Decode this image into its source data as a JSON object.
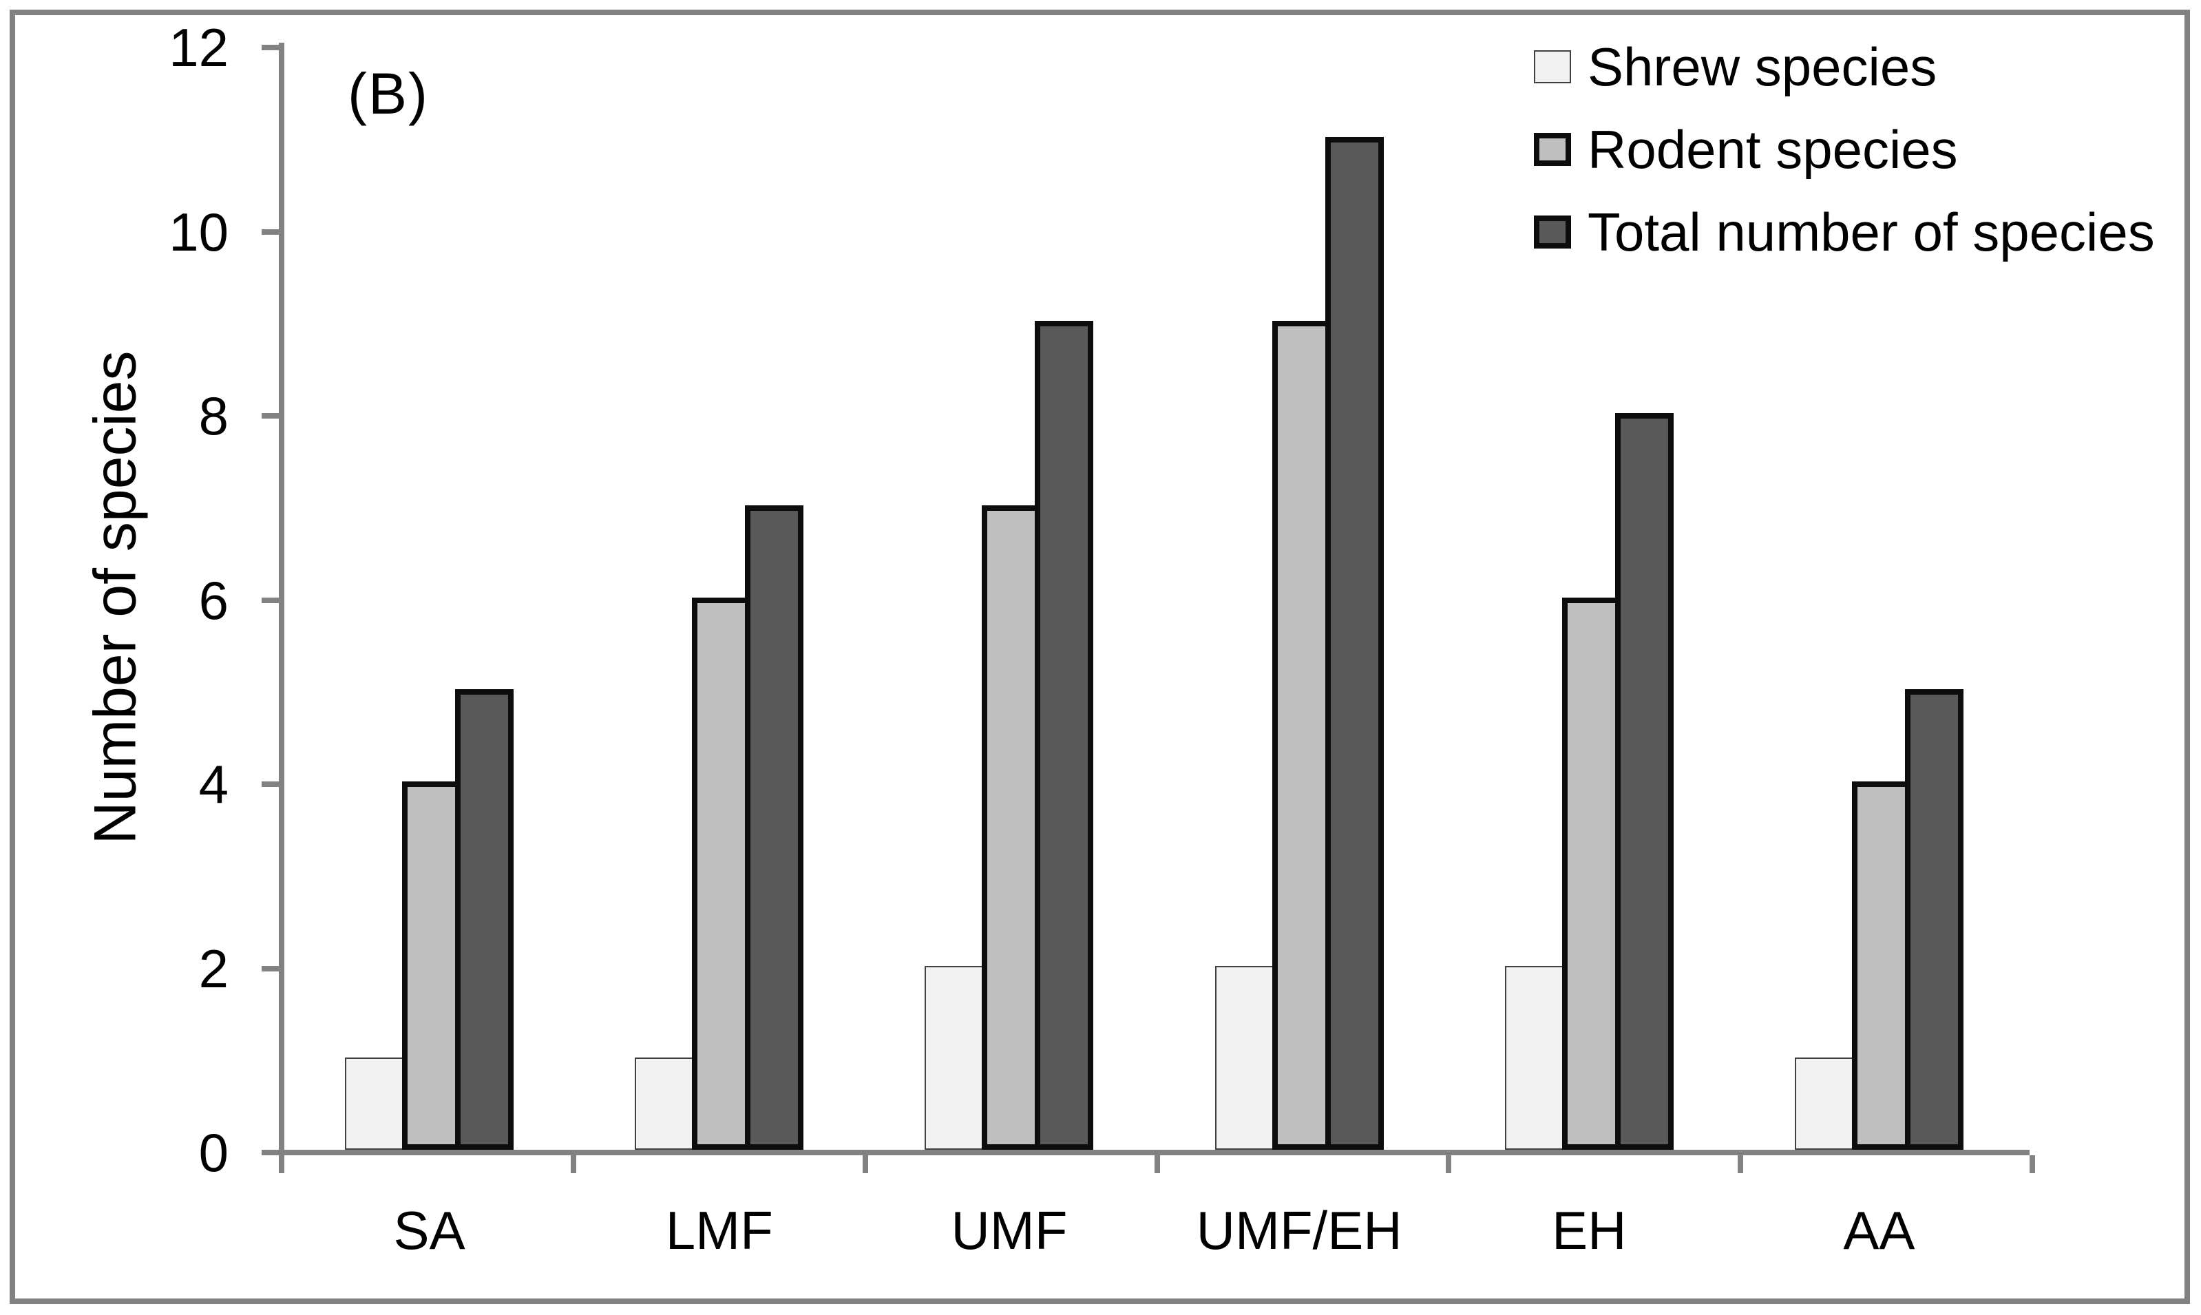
{
  "figure_label": "(B)",
  "chart_data": {
    "type": "bar",
    "title": "",
    "xlabel": "",
    "ylabel": "Number of species",
    "categories": [
      "SA",
      "LMF",
      "UMF",
      "UMF/EH",
      "EH",
      "AA"
    ],
    "series": [
      {
        "name": "Shrew species",
        "values": [
          1,
          1,
          2,
          2,
          2,
          1
        ],
        "fill": "#f2f2f2",
        "border_color": "#404040",
        "border_width": 2
      },
      {
        "name": "Rodent species",
        "values": [
          4,
          6,
          7,
          9,
          6,
          4
        ],
        "fill": "#bfbfbf",
        "border_color": "#0d0d0d",
        "border_width": 8
      },
      {
        "name": "Total number of species",
        "values": [
          5,
          7,
          9,
          11,
          8,
          5
        ],
        "fill": "#595959",
        "border_color": "#0d0d0d",
        "border_width": 8
      }
    ],
    "ylim": [
      0,
      12
    ],
    "yticks": [
      0,
      2,
      4,
      6,
      8,
      10,
      12
    ],
    "grid": false,
    "legend_position": "top-right",
    "axis_color": "#828282",
    "background_color": "#ffffff"
  }
}
